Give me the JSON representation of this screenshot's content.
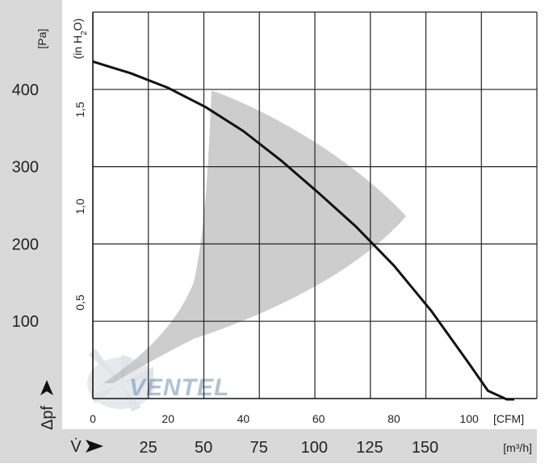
{
  "chart_data": {
    "type": "line",
    "ylabel_left": "Δpf",
    "y_unit_left": "[Pa]",
    "y_unit_inner": "(in H2O)",
    "ylim": [
      0,
      500
    ],
    "y_ticks": [
      100,
      200,
      300,
      400
    ],
    "y_inner_ticks": [
      "0,5",
      "1,0",
      "1,5"
    ],
    "xlabel": "V̇",
    "x_unit_cfm": "[CFM]",
    "x_unit_m3h": "[m³/h]",
    "xlim_cfm": [
      0,
      118
    ],
    "x_ticks_cfm": [
      0,
      20,
      40,
      60,
      80,
      100
    ],
    "x_ticks_m3h": [
      25,
      50,
      75,
      100,
      125,
      150
    ],
    "grid": true,
    "series": [
      {
        "x": [
          0,
          10,
          20,
          30,
          40,
          50,
          60,
          70,
          80,
          90,
          100,
          105,
          110,
          112
        ],
        "y": [
          436,
          421,
          402,
          377,
          346,
          308,
          266,
          222,
          172,
          113,
          45,
          10,
          -28,
          -40
        ]
      }
    ],
    "watermark": "VENTEL",
    "colors": {
      "curve": "#111111",
      "grid": "#222222",
      "band": "#cdcdcd",
      "axis_bar": "#d9d9d9",
      "logo": "#6c8fb8"
    }
  }
}
